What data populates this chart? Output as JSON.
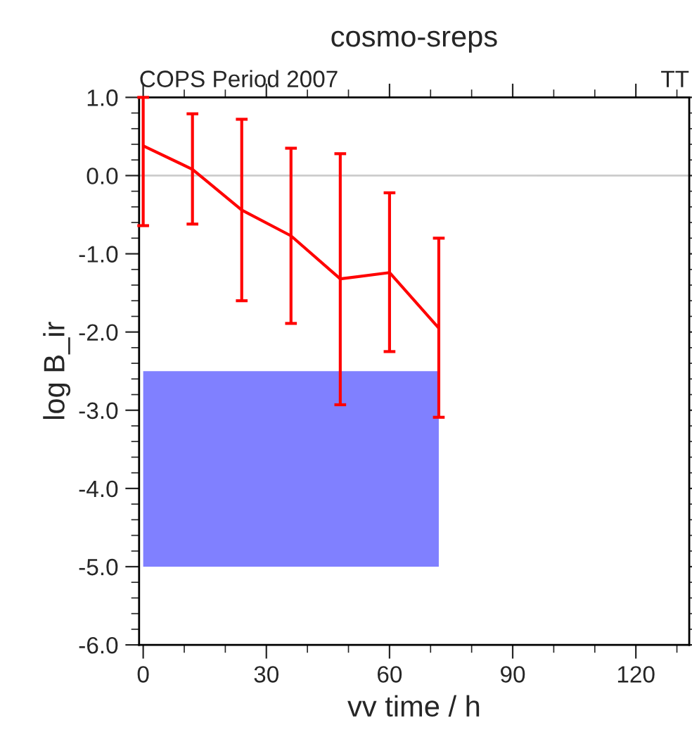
{
  "chart_data": {
    "type": "line",
    "title": "cosmo-sreps",
    "xlabel": "vv time / h",
    "ylabel": "log B_ir",
    "annotations": [
      "COPS Period 2007",
      "TT"
    ],
    "series": [
      {
        "color": "#8080ff",
        "x": [
          0,
          72
        ],
        "values": [
          null,
          null
        ],
        "lower": [
          -5.0,
          -5.0
        ],
        "upper": [
          -2.5,
          -2.5
        ]
      },
      {
        "type": "line",
        "color": "#ff0000",
        "x": [
          0,
          12,
          24,
          36,
          48,
          60,
          72
        ],
        "values": [
          0.38,
          0.08,
          -0.44,
          -0.77,
          -1.32,
          -1.24,
          -1.95
        ],
        "errors": [
          [
            -0.64,
            1.0
          ],
          [
            -0.62,
            0.79
          ],
          [
            -1.6,
            0.72
          ],
          [
            -1.89,
            0.35
          ],
          [
            -2.93,
            0.28
          ],
          [
            -2.25,
            -0.22
          ],
          [
            -3.09,
            -0.8
          ]
        ]
      }
    ],
    "ref_lines": [
      {
        "axis": "y",
        "value": 0,
        "color": "#cccccc"
      }
    ],
    "xlim": [
      -1,
      133
    ],
    "xticks": [
      0,
      30,
      60,
      90,
      120
    ],
    "ylim": [
      -6,
      1
    ],
    "yticks": [
      {
        "value": -6,
        "label": "-6.0"
      },
      {
        "value": -5,
        "label": "-5.0"
      },
      {
        "value": -4,
        "label": "-4.0"
      },
      {
        "value": -3,
        "label": "-3.0"
      },
      {
        "value": -2,
        "label": "-2.0"
      },
      {
        "value": -1,
        "label": "-1.0"
      },
      {
        "value": 0,
        "label": "0.0"
      },
      {
        "value": 1,
        "label": "1.0"
      }
    ],
    "grid": false,
    "legend": false,
    "marker": "none",
    "line_style": "solid"
  }
}
